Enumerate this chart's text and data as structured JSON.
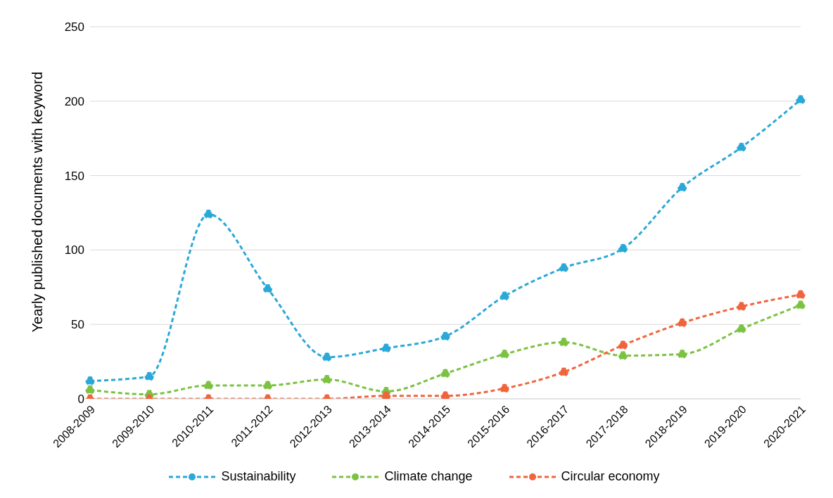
{
  "chart_data": {
    "type": "line",
    "ylabel": "Yearly published  documents with keyword",
    "categories": [
      "2008-2009",
      "2009-2010",
      "2010-2011",
      "2011-2012",
      "2012-2013",
      "2013-2014",
      "2014-2015",
      "2015-2016",
      "2016-2017",
      "2017-2018",
      "2018-2019",
      "2019-2020",
      "2020-2021"
    ],
    "series": [
      {
        "name": "Sustainability",
        "color": "#2aa8d8",
        "values": [
          12,
          15,
          124,
          74,
          28,
          34,
          42,
          69,
          88,
          101,
          142,
          169,
          201
        ]
      },
      {
        "name": "Climate change",
        "color": "#7cc242",
        "values": [
          6,
          3,
          9,
          9,
          13,
          5,
          17,
          30,
          38,
          29,
          30,
          47,
          63
        ]
      },
      {
        "name": "Circular economy",
        "color": "#f0643c",
        "values": [
          0,
          0,
          0,
          0,
          0,
          2,
          2,
          7,
          18,
          36,
          51,
          62,
          70
        ]
      }
    ],
    "ylim": [
      0,
      250
    ],
    "yticks": [
      0,
      50,
      100,
      150,
      200,
      250
    ],
    "grid": "y",
    "legend": "bottom",
    "marker": "circle",
    "line_style": "dashed"
  }
}
